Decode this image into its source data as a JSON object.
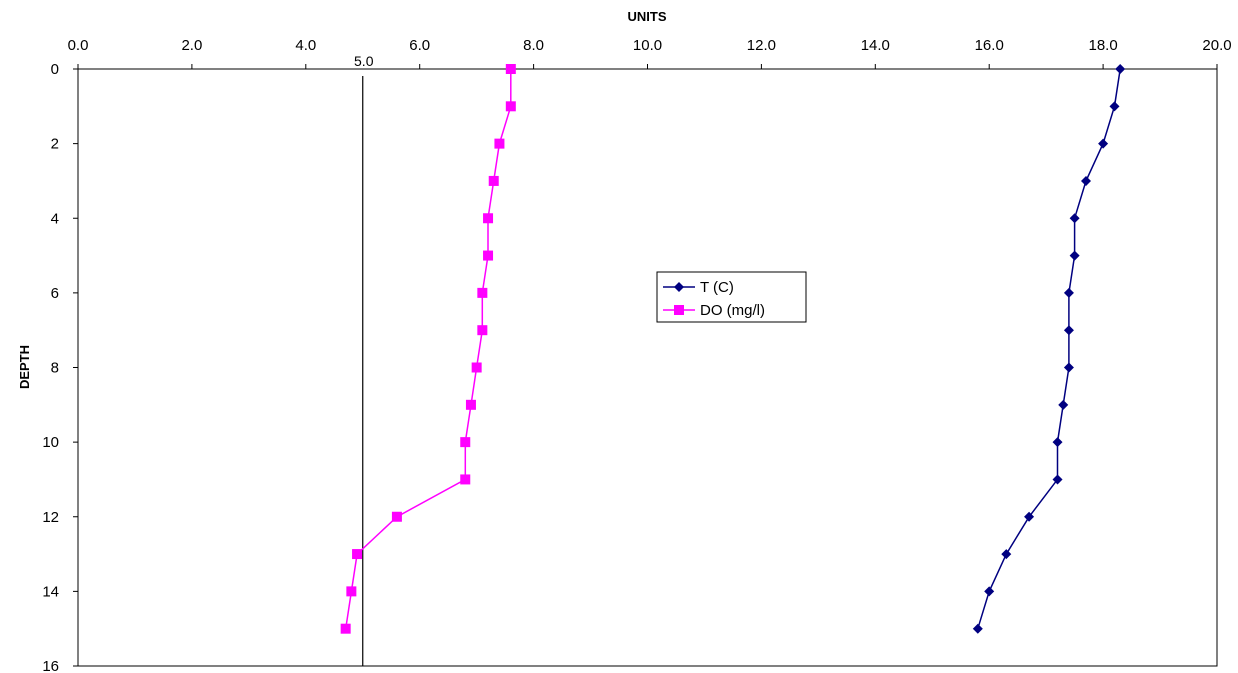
{
  "chart_data": {
    "type": "line",
    "title": "",
    "xlabel": "UNITS",
    "ylabel": "DEPTH",
    "xlim": [
      0,
      20
    ],
    "ylim": [
      0,
      16
    ],
    "y_inverted": true,
    "x_axis_position": "top",
    "xticks": [
      "0.0",
      "2.0",
      "4.0",
      "6.0",
      "8.0",
      "10.0",
      "12.0",
      "14.0",
      "16.0",
      "18.0",
      "20.0"
    ],
    "yticks": [
      "0",
      "2",
      "4",
      "6",
      "8",
      "10",
      "12",
      "14",
      "16"
    ],
    "grid": false,
    "legend_position": "center",
    "reference_line": {
      "x": 5.0,
      "label": "5.0"
    },
    "series": [
      {
        "name": "T (C)",
        "color": "#000080",
        "marker": "diamond",
        "x": [
          18.3,
          18.2,
          18.0,
          17.7,
          17.5,
          17.5,
          17.4,
          17.4,
          17.4,
          17.3,
          17.2,
          17.2,
          16.7,
          16.3,
          16.0,
          15.8
        ],
        "y": [
          0,
          1,
          2,
          3,
          4,
          5,
          6,
          7,
          8,
          9,
          10,
          11,
          12,
          13,
          14,
          15
        ]
      },
      {
        "name": "DO (mg/l)",
        "color": "#FF00FF",
        "marker": "square",
        "x": [
          7.6,
          7.6,
          7.4,
          7.3,
          7.2,
          7.2,
          7.1,
          7.1,
          7.0,
          6.9,
          6.8,
          6.8,
          5.6,
          4.9,
          4.8,
          4.7
        ],
        "y": [
          0,
          1,
          2,
          3,
          4,
          5,
          6,
          7,
          8,
          9,
          10,
          11,
          12,
          13,
          14,
          15
        ]
      }
    ]
  }
}
